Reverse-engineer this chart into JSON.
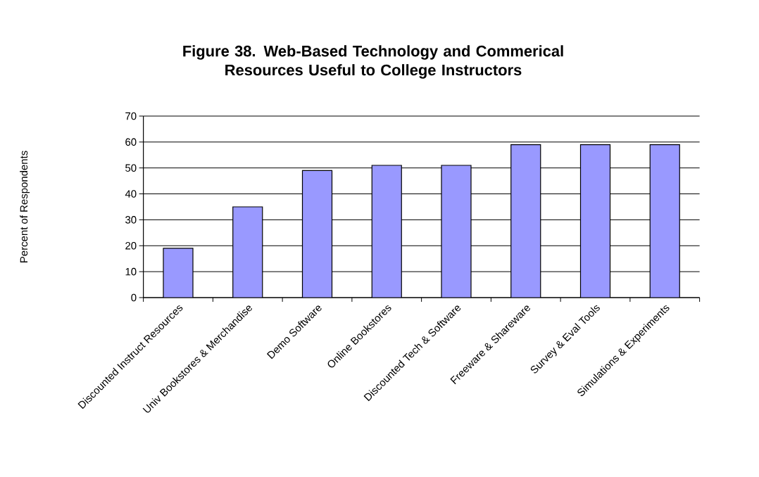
{
  "chart_data": {
    "type": "bar",
    "title": "Figure 38. Web-Based Technology and Commerical Resources Useful to College Instructors",
    "ylabel": "Percent of Respondents",
    "categories": [
      "Discounted Instruct Resources",
      "Univ Bookstores & Merchandise",
      "Demo Software",
      "Online Bookstores",
      "Discounted Tech & Software",
      "Freeware & Shareware",
      "Survey & Eval Tools",
      "Simulations & Experiments"
    ],
    "values": [
      19,
      35,
      49,
      51,
      51,
      59,
      59,
      59
    ],
    "color": "#9999ff",
    "ylim": [
      0,
      70
    ],
    "yticks": [
      0,
      10,
      20,
      30,
      40,
      50,
      60,
      70
    ],
    "grid": "y"
  }
}
